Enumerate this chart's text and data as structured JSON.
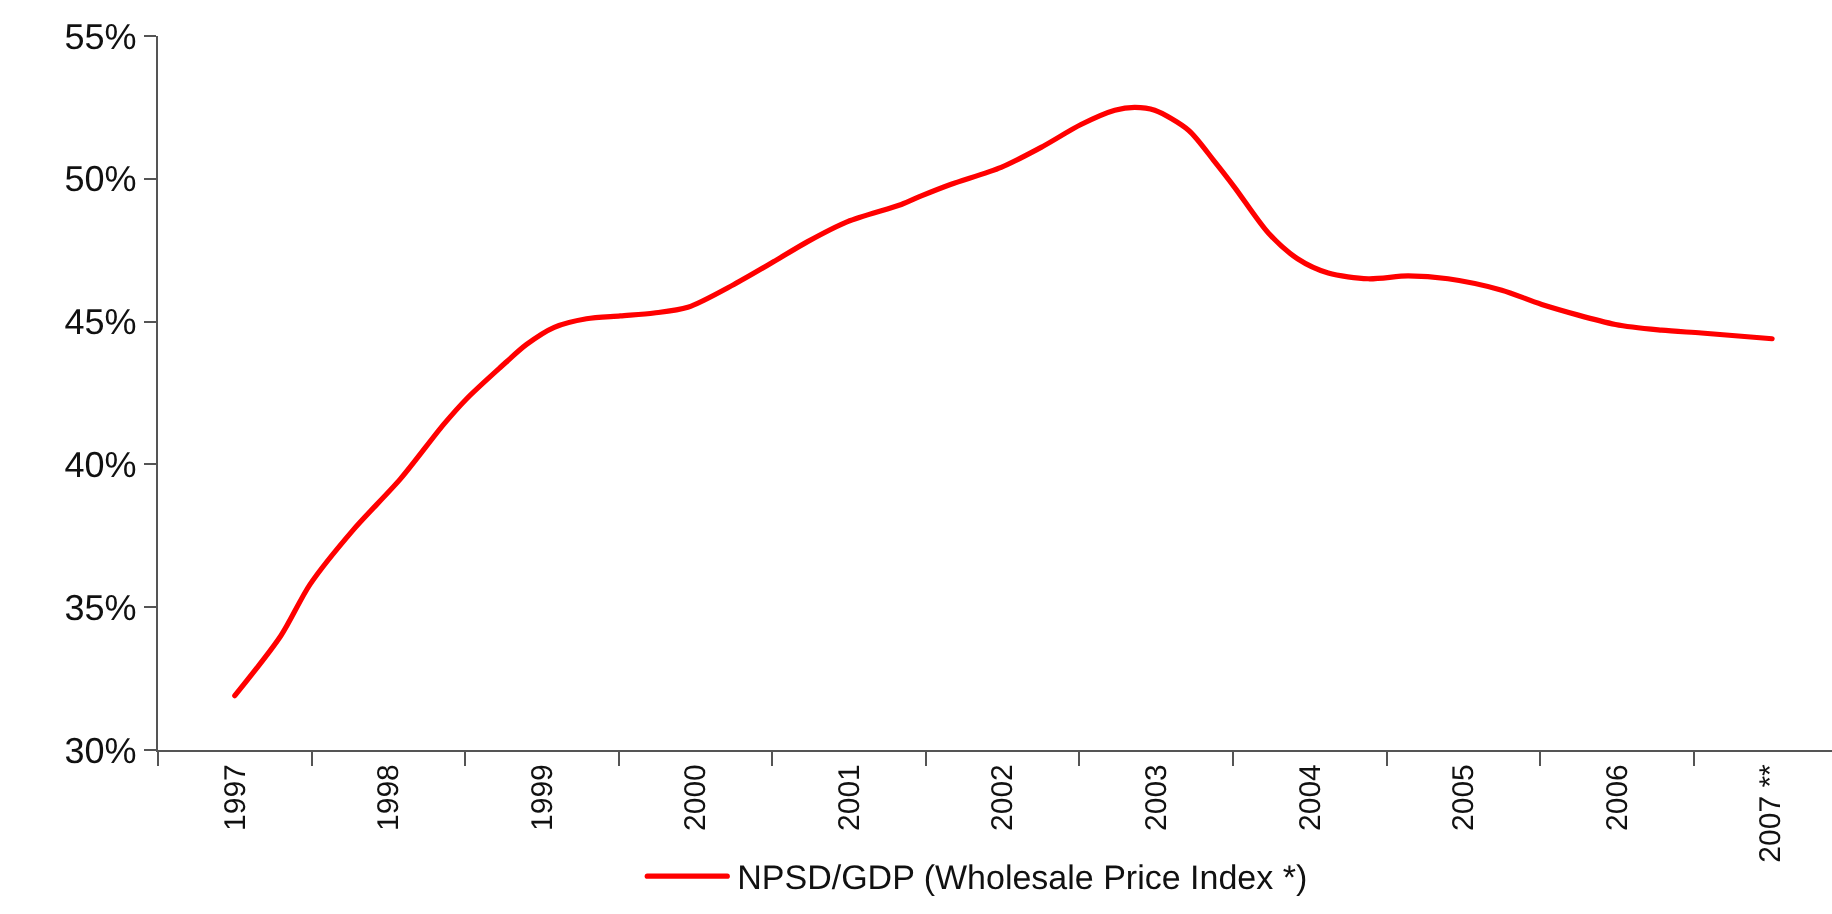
{
  "chart_data": {
    "type": "line",
    "x": [
      1997.0,
      1997.3,
      1997.49,
      1997.77,
      1998.08,
      1998.36,
      1998.51,
      1998.73,
      1998.9,
      1999.08,
      1999.29,
      1999.51,
      1999.73,
      1999.95,
      2000.25,
      2000.51,
      2000.73,
      2000.99,
      2001.34,
      2001.47,
      2001.66,
      2001.99,
      2002.25,
      2002.51,
      2002.73,
      2002.86,
      2002.99,
      2003.21,
      2003.38,
      2003.51,
      2003.73,
      2003.92,
      2004.12,
      2004.38,
      2004.64,
      2004.9,
      2005.25,
      2005.51,
      2005.99,
      2006.29,
      2006.55,
      2007.01
    ],
    "series": [
      {
        "name": "NPSD/GDP (Wholesale Price Index *)",
        "color": "#ff0000",
        "values": [
          31.9,
          34.0,
          35.8,
          37.7,
          39.5,
          41.4,
          42.3,
          43.4,
          44.2,
          44.8,
          45.1,
          45.2,
          45.3,
          45.5,
          46.3,
          47.1,
          47.8,
          48.5,
          49.1,
          49.4,
          49.8,
          50.4,
          51.1,
          51.9,
          52.4,
          52.5,
          52.4,
          51.7,
          50.6,
          49.7,
          48.1,
          47.2,
          46.7,
          46.5,
          46.6,
          46.5,
          46.1,
          45.6,
          44.9,
          44.7,
          44.6,
          44.4
        ]
      }
    ],
    "xlim": [
      1996.5,
      2007.4
    ],
    "xticks": [
      {
        "value": 1996.5,
        "label": null
      },
      1997,
      {
        "value": 1997.5,
        "label": null
      },
      1998,
      {
        "value": 1998.5,
        "label": null
      },
      1999,
      {
        "value": 1999.5,
        "label": null
      },
      2000,
      {
        "value": 2000.5,
        "label": null
      },
      2001,
      {
        "value": 2001.5,
        "label": null
      },
      2002,
      {
        "value": 2002.5,
        "label": null
      },
      2003,
      {
        "value": 2003.5,
        "label": null
      },
      2004,
      {
        "value": 2004.5,
        "label": null
      },
      2005,
      {
        "value": 2005.5,
        "label": null
      },
      2006,
      {
        "value": 2006.5,
        "label": null
      },
      {
        "value": 2007,
        "label": "2007 **"
      }
    ],
    "ylim": [
      30,
      55
    ],
    "yticks": [
      {
        "value": 30,
        "label": "30%"
      },
      {
        "value": 35,
        "label": "35%"
      },
      {
        "value": 40,
        "label": "40%"
      },
      {
        "value": 45,
        "label": "45%"
      },
      {
        "value": 50,
        "label": "50%"
      },
      {
        "value": 55,
        "label": "55%"
      }
    ],
    "grid": false,
    "legend": "bottom",
    "marker": "none",
    "line_style": "solid"
  }
}
